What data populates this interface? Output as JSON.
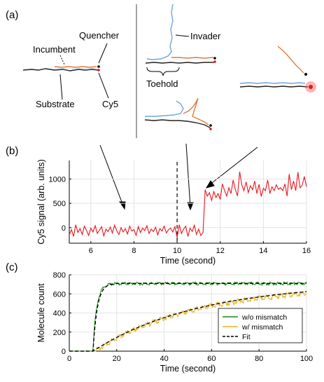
{
  "panels": {
    "a": {
      "tag": "(a)",
      "labels": {
        "incumbent": "Incumbent",
        "quencher": "Quencher",
        "substrate": "Substrate",
        "cy5": "Cy5",
        "invader": "Invader",
        "toehold": "Toehold"
      }
    },
    "b": {
      "tag": "(b)"
    },
    "c": {
      "tag": "(c)"
    }
  },
  "colors": {
    "signal": "#e8161c",
    "wo_mismatch": "#1a8a1a",
    "w_mismatch": "#e8b21e",
    "fit": "#000000",
    "substrate": "#222222",
    "incumbent": "#e07b3c",
    "invader": "#6fa8d8"
  },
  "chart_data": [
    {
      "type": "line",
      "panel": "b",
      "xlabel": "Time (second)",
      "ylabel": "Cy5 signal (arb. units)",
      "xlim": [
        5,
        16
      ],
      "ylim": [
        -320,
        1380
      ],
      "xticks": [
        6,
        8,
        10,
        12,
        14,
        16
      ],
      "yticks": [
        0,
        500,
        1000
      ],
      "grid": true,
      "vline_x": 10,
      "series": [
        {
          "color": "#e8161c",
          "x": [
            5.0,
            5.1,
            5.2,
            5.3,
            5.4,
            5.5,
            5.6,
            5.7,
            5.8,
            5.9,
            6.0,
            6.1,
            6.2,
            6.3,
            6.4,
            6.5,
            6.6,
            6.7,
            6.8,
            6.9,
            7.0,
            7.1,
            7.2,
            7.3,
            7.4,
            7.5,
            7.6,
            7.7,
            7.8,
            7.9,
            8.0,
            8.1,
            8.2,
            8.3,
            8.4,
            8.5,
            8.6,
            8.7,
            8.8,
            8.9,
            9.0,
            9.1,
            9.2,
            9.3,
            9.4,
            9.5,
            9.6,
            9.7,
            9.8,
            9.9,
            10.0,
            10.1,
            10.2,
            10.3,
            10.4,
            10.5,
            10.6,
            10.7,
            10.8,
            10.9,
            11.0,
            11.1,
            11.2,
            11.3,
            11.4,
            11.5,
            11.6,
            11.7,
            11.8,
            11.9,
            12.0,
            12.1,
            12.2,
            12.3,
            12.4,
            12.5,
            12.6,
            12.7,
            12.8,
            12.9,
            13.0,
            13.1,
            13.2,
            13.3,
            13.4,
            13.5,
            13.6,
            13.7,
            13.8,
            13.9,
            14.0,
            14.1,
            14.2,
            14.3,
            14.4,
            14.5,
            14.6,
            14.7,
            14.8,
            14.9,
            15.0,
            15.1,
            15.2,
            15.3,
            15.4,
            15.5,
            15.6,
            15.7,
            15.8,
            15.9,
            16.0
          ],
          "y": [
            -150,
            -40,
            -180,
            60,
            -100,
            -20,
            -140,
            30,
            -60,
            -160,
            -10,
            -90,
            40,
            -120,
            -50,
            20,
            -170,
            -30,
            -80,
            10,
            -110,
            50,
            -60,
            -140,
            0,
            -90,
            -20,
            -130,
            30,
            -70,
            -40,
            -160,
            20,
            -100,
            -10,
            -60,
            40,
            -120,
            -30,
            -80,
            10,
            -150,
            -20,
            -70,
            30,
            -110,
            -40,
            -10,
            -90,
            20,
            -200,
            60,
            -120,
            -30,
            30,
            -180,
            -10,
            -80,
            50,
            -140,
            -30,
            -160,
            -100,
            780,
            650,
            720,
            560,
            740,
            620,
            700,
            580,
            900,
            760,
            650,
            820,
            700,
            980,
            780,
            650,
            1150,
            880,
            760,
            940,
            720,
            860,
            780,
            960,
            700,
            890,
            640,
            810,
            760,
            980,
            700,
            840,
            760,
            880,
            790,
            820,
            760,
            900,
            650,
            1100,
            780,
            960,
            760,
            1140,
            820,
            870,
            1050,
            840
          ]
        }
      ]
    },
    {
      "type": "line",
      "panel": "c",
      "xlabel": "Time (second)",
      "ylabel": "Molecule count",
      "xlim": [
        0,
        100
      ],
      "ylim": [
        0,
        800
      ],
      "xticks": [
        0,
        20,
        40,
        60,
        80,
        100
      ],
      "yticks": [
        0,
        200,
        400,
        600,
        800
      ],
      "grid": true,
      "legend": "bottom-right",
      "series": [
        {
          "name": "w/o mismatch",
          "color": "#1a8a1a",
          "model": {
            "type": "exp_rise",
            "t0": 9.9,
            "plateau": 715,
            "tau": 1.6
          }
        },
        {
          "name": "w/ mismatch",
          "color": "#e8b21e",
          "model": {
            "type": "exp_rise",
            "t0": 10,
            "plateau": 700,
            "tau": 42
          }
        },
        {
          "name": "Fit",
          "color": "#000000",
          "dashed": true,
          "model": {
            "type": "exp_rise",
            "t0": 10,
            "plateau": 710,
            "tau": 1.8
          }
        },
        {
          "color": "#000000",
          "dashed": true,
          "model": {
            "type": "exp_rise",
            "t0": 10,
            "plateau": 720,
            "tau": 45
          }
        }
      ]
    }
  ]
}
